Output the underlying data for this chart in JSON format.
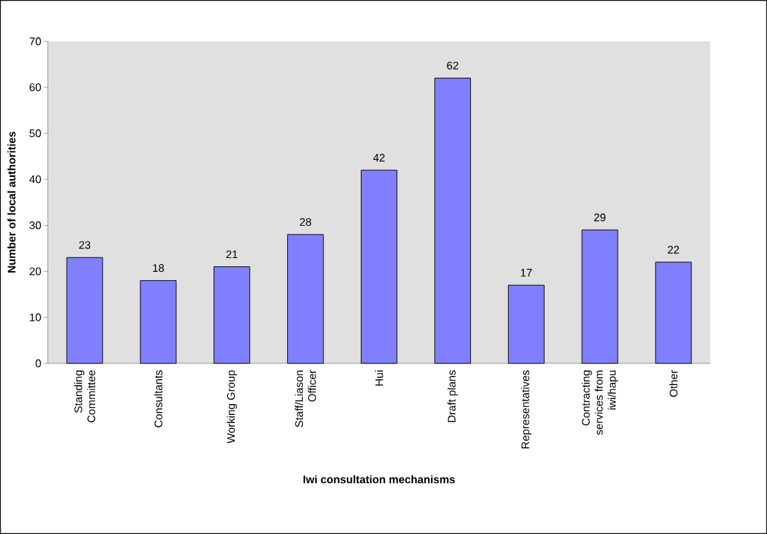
{
  "chart_data": {
    "type": "bar",
    "xlabel": "Iwi consultation mechanisms",
    "ylabel": "Number of local authorities",
    "categories": [
      "Standing Committee",
      "Consultants",
      "Working Group",
      "Staff/Liason Officer",
      "Hui",
      "Draft plans",
      "Representatives",
      "Contracting services from iwi/hapu",
      "Other"
    ],
    "values": [
      23,
      18,
      21,
      28,
      42,
      62,
      17,
      29,
      22
    ],
    "color": "#8080ff",
    "ylim": [
      0,
      70
    ],
    "yticks": [
      0,
      10,
      20,
      30,
      40,
      50,
      60,
      70
    ],
    "data_labels": true
  }
}
